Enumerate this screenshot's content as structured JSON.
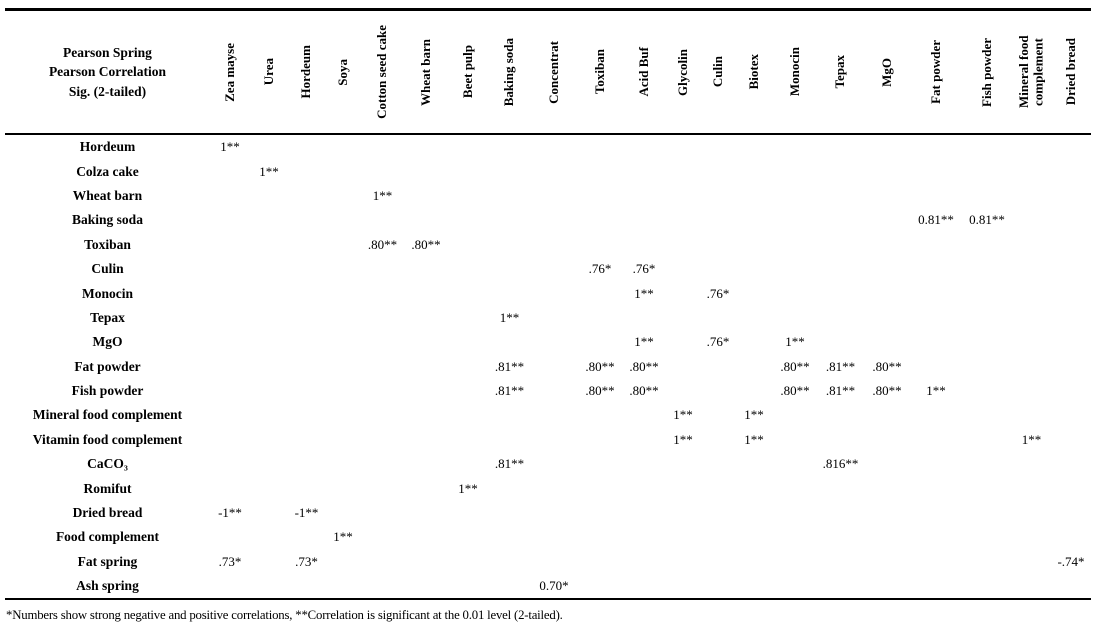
{
  "title_block": {
    "line1": "Pearson Spring",
    "line2": "Pearson Correlation",
    "line3": "Sig. (2-tailed)"
  },
  "table": {
    "columns": [
      "Zea mayse",
      "Urea",
      "Hordeum",
      "Soya",
      "Cotton seed cake",
      "Wheat barn",
      "Beet pulp",
      "Baking soda",
      "Concentrat",
      "Toxiban",
      "Acid Buf",
      "Glycolin",
      "Culin",
      "Biotex",
      "Monocin",
      "Tepax",
      "MgO",
      "Fat powder",
      "Fish powder",
      "Mineral food complement",
      "Dried bread"
    ],
    "rows": [
      {
        "label": "Hordeum",
        "cells": {
          "Zea mayse": "1**"
        }
      },
      {
        "label": "Colza cake",
        "cells": {
          "Urea": "1**"
        }
      },
      {
        "label": "Wheat barn",
        "cells": {
          "Cotton seed cake": "1**"
        }
      },
      {
        "label": "Baking soda",
        "cells": {
          "Fat powder": "0.81**",
          "Fish powder": "0.81**"
        }
      },
      {
        "label": "Toxiban",
        "cells": {
          "Cotton seed cake": ".80**",
          "Wheat barn": ".80**"
        }
      },
      {
        "label": "Culin",
        "cells": {
          "Toxiban": ".76*",
          "Acid Buf": ".76*"
        }
      },
      {
        "label": "Monocin",
        "cells": {
          "Acid Buf": "1**",
          "Culin": ".76*"
        }
      },
      {
        "label": "Tepax",
        "cells": {
          "Baking soda": "1**"
        }
      },
      {
        "label": "MgO",
        "cells": {
          "Acid Buf": "1**",
          "Culin": ".76*",
          "Monocin": "1**"
        }
      },
      {
        "label": "Fat powder",
        "cells": {
          "Baking soda": ".81**",
          "Toxiban": ".80**",
          "Acid Buf": ".80**",
          "Monocin": ".80**",
          "Tepax": ".81**",
          "MgO": ".80**"
        }
      },
      {
        "label": "Fish powder",
        "cells": {
          "Baking soda": ".81**",
          "Toxiban": ".80**",
          "Acid Buf": ".80**",
          "Monocin": ".80**",
          "Tepax": ".81**",
          "MgO": ".80**",
          "Fat powder": "1**"
        }
      },
      {
        "label": "Mineral food complement",
        "cells": {
          "Glycolin": "1**",
          "Biotex": "1**"
        }
      },
      {
        "label": "Vitamin food complement",
        "cells": {
          "Glycolin": "1**",
          "Biotex": "1**",
          "Mineral food complement": "1**"
        }
      },
      {
        "label": "CaCO₃",
        "cells": {
          "Baking soda": ".81**",
          "Tepax": ".816**"
        }
      },
      {
        "label": "Romifut",
        "cells": {
          "Beet pulp": "1**"
        }
      },
      {
        "label": "Dried bread",
        "cells": {
          "Zea mayse": "-1**",
          "Hordeum": "-1**"
        }
      },
      {
        "label": "Food complement",
        "cells": {
          "Soya": "1**"
        }
      },
      {
        "label": "Fat spring",
        "cells": {
          "Zea mayse": ".73*",
          "Hordeum": ".73*",
          "Dried bread": "-.74*"
        }
      },
      {
        "label": "Ash spring",
        "cells": {
          "Concentrat": "0.70*"
        }
      }
    ]
  },
  "footnote": "*Numbers show strong negative and positive correlations, **Correlation is significant at the 0.01 level (2-tailed)."
}
